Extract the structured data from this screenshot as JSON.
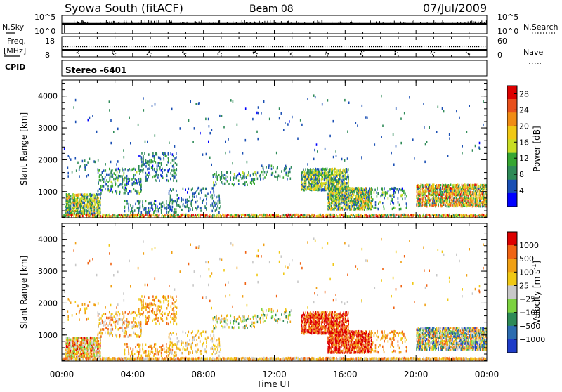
{
  "header": {
    "station": "Syowa South (fitACF)",
    "beam": "Beam 08",
    "date": "07/Jul/2009"
  },
  "status_panels": {
    "nsky_label": "N.Sky",
    "nsearch_label": "N.Search",
    "freq_label": "Freq.",
    "freq_unit": "[MHz]",
    "nave_label": "Nave",
    "cpid_label": "CPID",
    "cpid_value": "Stereo -6401",
    "noise_left_ticks": [
      "10^5",
      "10^0"
    ],
    "noise_right_ticks": [
      "10^5",
      "10^0"
    ],
    "freq_left_ticks": [
      "18",
      "8"
    ],
    "freq_right_ticks": [
      "60",
      "0"
    ]
  },
  "colors": {
    "power_scale": [
      "#0000ff",
      "#1a4fb4",
      "#2e8a57",
      "#36a632",
      "#c8dd24",
      "#f0c814",
      "#f08c14",
      "#e8501c",
      "#dc0000"
    ],
    "velocity_scale": [
      "#1e3cc8",
      "#2c6cb0",
      "#2e8a57",
      "#7cd240",
      "#c8c8c8",
      "#f0c814",
      "#f0a014",
      "#f06414",
      "#dc0000"
    ]
  },
  "chart_data": [
    {
      "type": "heatmap",
      "quantity": "power",
      "xlabel": "Time UT",
      "ylabel": "Slant Range [km]",
      "xlim": [
        0,
        24
      ],
      "ylim": [
        180,
        4500
      ],
      "x_ticks": [
        "00:00",
        "04:00",
        "08:00",
        "12:00",
        "16:00",
        "20:00",
        "00:00"
      ],
      "y_ticks": [
        1000,
        2000,
        3000,
        4000
      ],
      "colorbar_label": "Power [dB]",
      "colorbar_range": [
        0,
        30
      ],
      "colorbar_ticks": [
        4,
        8,
        12,
        16,
        20,
        24,
        28
      ]
    },
    {
      "type": "heatmap",
      "quantity": "velocity",
      "xlabel": "Time UT",
      "ylabel": "Slant Range [km]",
      "xlim": [
        0,
        24
      ],
      "ylim": [
        180,
        4500
      ],
      "x_ticks": [
        "00:00",
        "04:00",
        "08:00",
        "12:00",
        "16:00",
        "20:00",
        "00:00"
      ],
      "y_ticks": [
        1000,
        2000,
        3000,
        4000
      ],
      "colorbar_label": "Velocity [m s",
      "colorbar_label_sup": "-1",
      "colorbar_label_end": "]",
      "colorbar_ticks": [
        "1000",
        "500",
        "100",
        "25",
        "−25",
        "−100",
        "−500",
        "−1000"
      ],
      "scatter_regions": [
        {
          "t0": 0.2,
          "t1": 2.2,
          "r0": 250,
          "r1": 900,
          "density": 0.9,
          "power": [
            4,
            22
          ],
          "vel": [
            3,
            8
          ]
        },
        {
          "t0": 0.3,
          "t1": 1.5,
          "r0": 1300,
          "r1": 2000,
          "density": 0.15,
          "power": [
            3,
            10
          ],
          "vel": [
            5,
            7
          ]
        },
        {
          "t0": 2.0,
          "t1": 4.5,
          "r0": 900,
          "r1": 1700,
          "density": 0.35,
          "power": [
            3,
            14
          ],
          "vel": [
            4,
            7
          ]
        },
        {
          "t0": 4.3,
          "t1": 6.5,
          "r0": 1300,
          "r1": 2200,
          "density": 0.3,
          "power": [
            3,
            12
          ],
          "vel": [
            5,
            7
          ]
        },
        {
          "t0": 3.5,
          "t1": 6.5,
          "r0": 300,
          "r1": 700,
          "density": 0.3,
          "power": [
            3,
            12
          ],
          "vel": [
            5,
            7
          ]
        },
        {
          "t0": 6.0,
          "t1": 9.0,
          "r0": 300,
          "r1": 1100,
          "density": 0.2,
          "power": [
            3,
            10
          ],
          "vel": [
            4,
            6
          ]
        },
        {
          "t0": 8.5,
          "t1": 11.0,
          "r0": 1150,
          "r1": 1600,
          "density": 0.3,
          "power": [
            3,
            14
          ],
          "vel": [
            2,
            6
          ]
        },
        {
          "t0": 11.0,
          "t1": 13.0,
          "r0": 1350,
          "r1": 1800,
          "density": 0.25,
          "power": [
            3,
            12
          ],
          "vel": [
            2,
            6
          ]
        },
        {
          "t0": 13.5,
          "t1": 16.2,
          "r0": 1000,
          "r1": 1700,
          "density": 0.8,
          "power": [
            4,
            20
          ],
          "vel": [
            6,
            9
          ]
        },
        {
          "t0": 15.0,
          "t1": 17.5,
          "r0": 400,
          "r1": 1100,
          "density": 0.85,
          "power": [
            4,
            22
          ],
          "vel": [
            6,
            9
          ]
        },
        {
          "t0": 17.5,
          "t1": 19.5,
          "r0": 400,
          "r1": 1100,
          "density": 0.25,
          "power": [
            3,
            14
          ],
          "vel": [
            5,
            7
          ]
        },
        {
          "t0": 20.0,
          "t1": 24.0,
          "r0": 500,
          "r1": 1200,
          "density": 0.85,
          "power": [
            6,
            28
          ],
          "vel": [
            0,
            7
          ]
        },
        {
          "t0": 0.0,
          "t1": 24.0,
          "r0": 180,
          "r1": 260,
          "density": 0.9,
          "power": [
            8,
            30
          ],
          "vel": [
            4,
            7
          ]
        },
        {
          "t0": 0.0,
          "t1": 24.0,
          "r0": 1800,
          "r1": 4000,
          "density": 0.012,
          "power": [
            3,
            8
          ],
          "vel": [
            4,
            7
          ]
        }
      ]
    }
  ]
}
